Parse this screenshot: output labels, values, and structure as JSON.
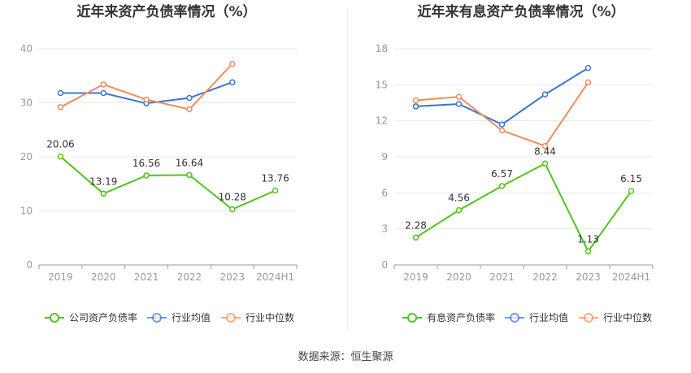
{
  "source_text": "数据来源：恒生聚源",
  "colors": {
    "company": "#52c41a",
    "avg": "#3a75d7",
    "median": "#f28c5c",
    "grid": "#e8e8e8",
    "axis": "#999999",
    "tick": "#999999",
    "label": "#333333"
  },
  "chart_data": [
    {
      "type": "line",
      "title": "近年来资产负债率情况（%）",
      "categories": [
        "2019",
        "2020",
        "2021",
        "2022",
        "2023",
        "2024H1"
      ],
      "ylim": [
        0,
        40
      ],
      "yticks": [
        0,
        10,
        20,
        30,
        40
      ],
      "grid": true,
      "legend_position": "bottom",
      "series": [
        {
          "name": "公司资产负债率",
          "key": "company",
          "values": [
            20.06,
            13.19,
            16.56,
            16.64,
            10.28,
            13.76
          ],
          "labels": [
            "20.06",
            "13.19",
            "16.56",
            "16.64",
            "10.28",
            "13.76"
          ]
        },
        {
          "name": "行业均值",
          "key": "avg",
          "values": [
            31.8,
            31.8,
            29.9,
            30.9,
            33.8,
            null
          ]
        },
        {
          "name": "行业中位数",
          "key": "median",
          "values": [
            29.2,
            33.4,
            30.6,
            28.8,
            37.2,
            null
          ]
        }
      ]
    },
    {
      "type": "line",
      "title": "近年来有息资产负债率情况（%）",
      "categories": [
        "2019",
        "2020",
        "2021",
        "2022",
        "2023",
        "2024H1"
      ],
      "ylim": [
        0,
        18
      ],
      "yticks": [
        0,
        3,
        6,
        9,
        12,
        15,
        18
      ],
      "grid": true,
      "legend_position": "bottom",
      "series": [
        {
          "name": "有息资产负债率",
          "key": "company",
          "values": [
            2.28,
            4.56,
            6.57,
            8.44,
            1.13,
            6.15
          ],
          "labels": [
            "2.28",
            "4.56",
            "6.57",
            "8.44",
            "1.13",
            "6.15"
          ]
        },
        {
          "name": "行业均值",
          "key": "avg",
          "values": [
            13.2,
            13.4,
            11.7,
            14.2,
            16.4,
            null
          ]
        },
        {
          "name": "行业中位数",
          "key": "median",
          "values": [
            13.7,
            14.0,
            11.2,
            9.9,
            15.2,
            null
          ]
        }
      ]
    }
  ]
}
